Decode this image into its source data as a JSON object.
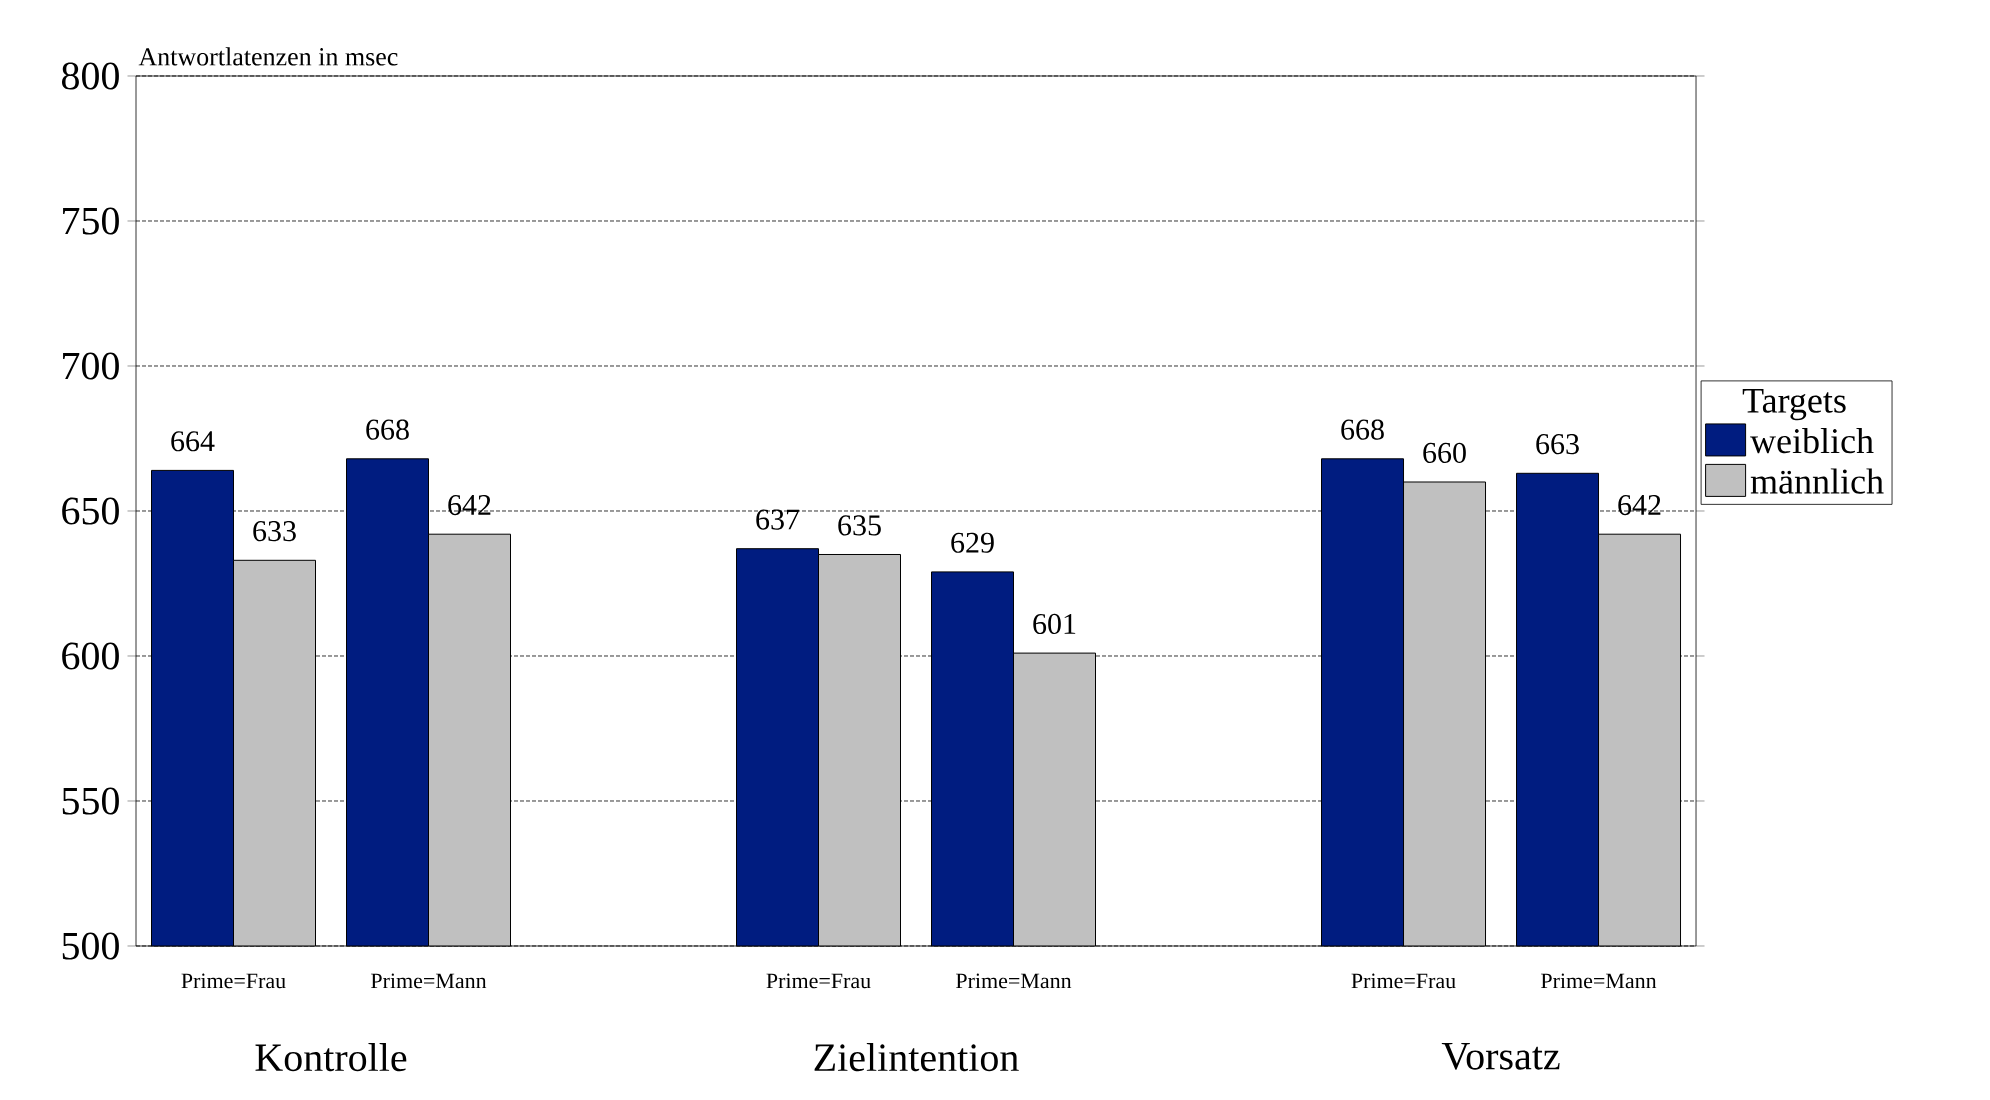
{
  "chart_data": {
    "type": "bar",
    "ylabel": "Antwortlatenzen in msec",
    "legend_title": "Targets",
    "categories": [
      "Prime=Frau",
      "Prime=Mann",
      null,
      "Prime=Frau",
      "Prime=Mann",
      null,
      "Prime=Frau",
      "Prime=Mann"
    ],
    "series": [
      {
        "name": "weiblich",
        "color": "#001c80",
        "values": [
          664,
          668,
          null,
          637,
          629,
          null,
          668,
          663
        ]
      },
      {
        "name": "männlich",
        "color": "#c0c0c0",
        "values": [
          633,
          642,
          null,
          635,
          601,
          null,
          660,
          642
        ]
      }
    ],
    "annotations": [
      "Kontrolle",
      "Zielintention",
      "Vorsatz"
    ],
    "ylim": [
      500,
      800
    ],
    "yticks": [
      500,
      550,
      600,
      650,
      700,
      750,
      800
    ],
    "grid": "y",
    "legend": "right",
    "data_labels": true
  }
}
